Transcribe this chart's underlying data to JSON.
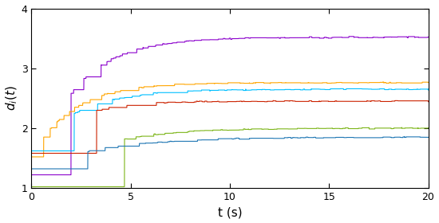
{
  "xlabel": "t (s)",
  "ylabel": "$d_i(t)$",
  "xlim": [
    0,
    20
  ],
  "ylim": [
    1,
    4
  ],
  "xticks": [
    0,
    5,
    10,
    15,
    20
  ],
  "yticks": [
    1,
    2,
    3,
    4
  ],
  "lines": [
    {
      "color": "#8B00CC",
      "final_value": 3.52,
      "start_value": 1.22,
      "tau": 2.2,
      "event_rate_base": 0.18,
      "seed": 10
    },
    {
      "color": "#FFA500",
      "final_value": 2.76,
      "start_value": 1.52,
      "tau": 2.0,
      "event_rate_base": 0.2,
      "seed": 20
    },
    {
      "color": "#00BFFF",
      "final_value": 2.65,
      "start_value": 1.62,
      "tau": 2.3,
      "event_rate_base": 0.2,
      "seed": 30
    },
    {
      "color": "#CC2200",
      "final_value": 2.45,
      "start_value": 1.58,
      "tau": 1.9,
      "event_rate_base": 0.22,
      "seed": 40
    },
    {
      "color": "#7CB518",
      "final_value": 2.0,
      "start_value": 1.02,
      "tau": 2.8,
      "event_rate_base": 0.22,
      "seed": 50
    },
    {
      "color": "#1F77B4",
      "final_value": 1.85,
      "start_value": 1.32,
      "tau": 3.5,
      "event_rate_base": 0.25,
      "seed": 60
    }
  ],
  "background_color": "#ffffff",
  "linewidth": 0.8,
  "figsize": [
    5.5,
    2.8
  ],
  "dpi": 100
}
